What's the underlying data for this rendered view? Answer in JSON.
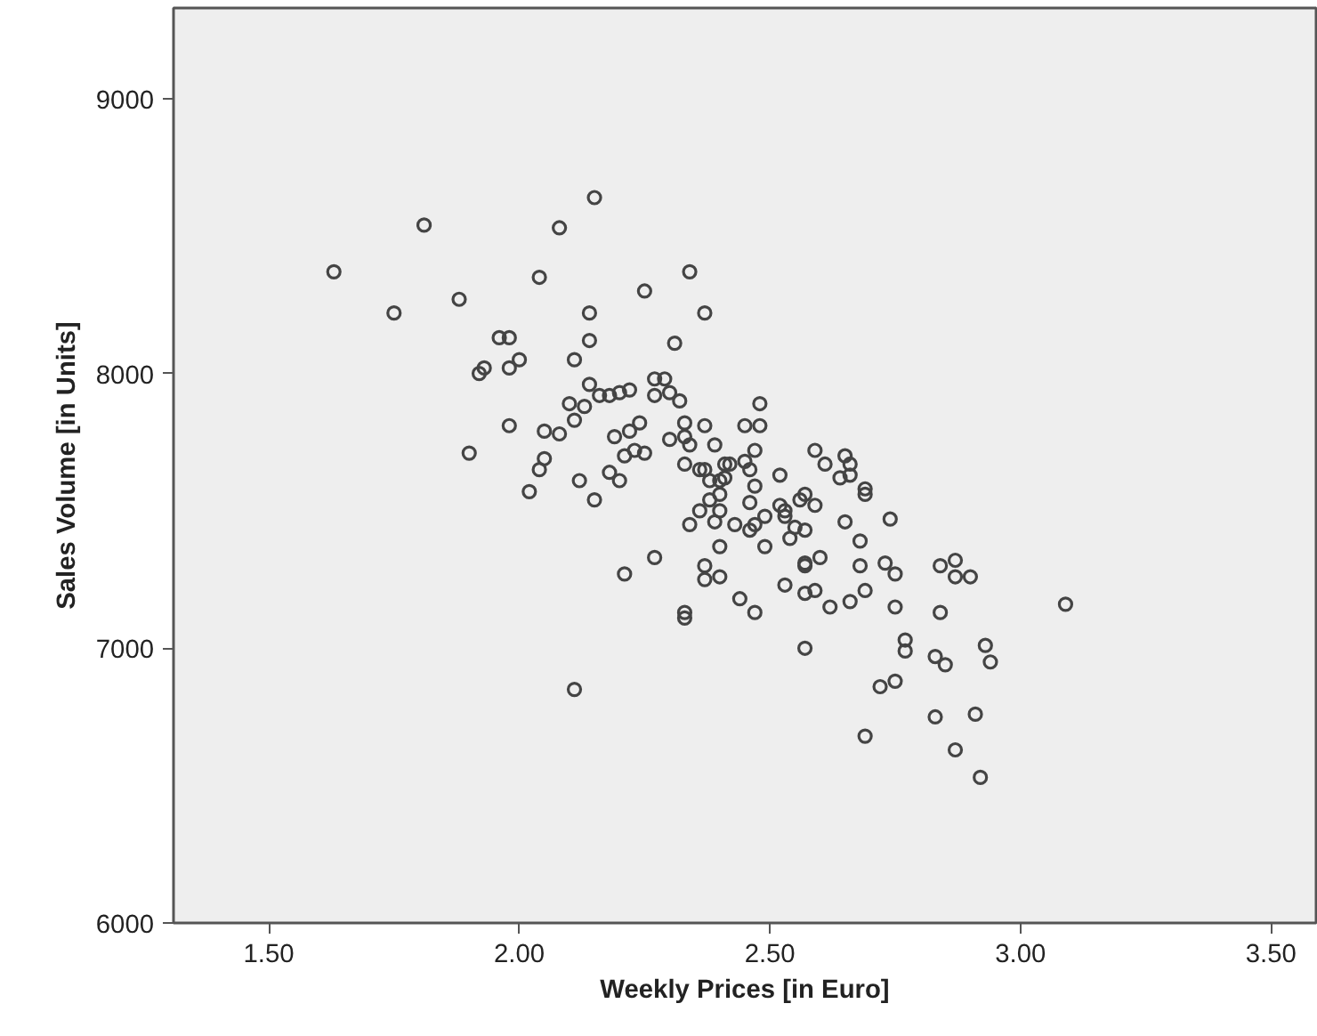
{
  "chart_data": {
    "type": "scatter",
    "xlabel": "Weekly Prices [in Euro]",
    "ylabel": "Sales Volume [in Units]",
    "xlim": [
      1.31,
      3.59
    ],
    "ylim": [
      6000,
      9330
    ],
    "xticks": [
      {
        "value": 1.5,
        "label": "1.50"
      },
      {
        "value": 2.0,
        "label": "2.00"
      },
      {
        "value": 2.5,
        "label": "2.50"
      },
      {
        "value": 3.0,
        "label": "3.00"
      },
      {
        "value": 3.5,
        "label": "3.50"
      }
    ],
    "yticks": [
      6000,
      7000,
      8000,
      9000
    ],
    "grid": false,
    "marker": "circle",
    "series": [
      {
        "color": "#444444",
        "x": [
          2.15,
          1.81,
          2.08,
          1.63,
          2.04,
          2.25,
          1.88,
          1.75,
          2.14,
          1.96,
          1.98,
          2.14,
          2.11,
          1.93,
          1.92,
          1.98,
          2.0,
          2.14,
          2.16,
          2.18,
          2.2,
          2.22,
          2.27,
          2.27,
          2.1,
          2.13,
          2.11,
          1.98,
          2.05,
          2.08,
          2.19,
          2.24,
          2.22,
          1.9,
          2.05,
          2.04,
          2.21,
          2.23,
          2.25,
          2.18,
          2.2,
          2.12,
          2.02,
          2.15,
          2.21,
          2.27,
          2.11,
          2.34,
          2.37,
          2.31,
          2.29,
          2.3,
          2.32,
          2.48,
          2.45,
          2.48,
          2.33,
          2.37,
          2.33,
          2.3,
          2.34,
          2.39,
          2.47,
          2.59,
          2.61,
          2.65,
          2.66,
          2.64,
          2.66,
          2.33,
          2.36,
          2.37,
          2.41,
          2.42,
          2.45,
          2.46,
          2.52,
          2.38,
          2.4,
          2.41,
          2.47,
          2.4,
          2.69,
          2.69,
          2.38,
          2.46,
          2.56,
          2.57,
          2.59,
          2.36,
          2.4,
          2.52,
          2.53,
          2.34,
          2.39,
          2.43,
          2.49,
          2.53,
          2.55,
          2.46,
          2.47,
          2.57,
          2.54,
          2.65,
          2.74,
          2.4,
          2.49,
          2.68,
          2.6,
          2.37,
          2.57,
          2.57,
          2.68,
          2.73,
          2.75,
          2.84,
          2.87,
          2.87,
          2.9,
          2.37,
          2.4,
          2.53,
          2.44,
          2.57,
          2.59,
          2.66,
          2.69,
          2.75,
          2.84,
          2.62,
          2.47,
          2.33,
          2.33,
          3.09,
          2.57,
          2.77,
          2.77,
          2.83,
          2.85,
          2.93,
          2.94,
          2.75,
          2.72,
          2.83,
          2.91,
          2.69,
          2.87,
          2.92
        ],
        "values": [
          8640,
          8540,
          8530,
          8370,
          8350,
          8300,
          8270,
          8220,
          8220,
          8130,
          8130,
          8120,
          8050,
          8020,
          8000,
          8020,
          8050,
          7960,
          7920,
          7920,
          7930,
          7940,
          7980,
          7920,
          7890,
          7880,
          7830,
          7810,
          7790,
          7780,
          7770,
          7820,
          7790,
          7710,
          7690,
          7650,
          7700,
          7720,
          7710,
          7640,
          7610,
          7610,
          7570,
          7540,
          7270,
          7330,
          6850,
          8370,
          8220,
          8110,
          7980,
          7930,
          7900,
          7890,
          7810,
          7810,
          7820,
          7810,
          7770,
          7760,
          7740,
          7740,
          7720,
          7720,
          7670,
          7700,
          7670,
          7620,
          7630,
          7670,
          7650,
          7650,
          7670,
          7670,
          7680,
          7650,
          7630,
          7610,
          7610,
          7620,
          7590,
          7560,
          7560,
          7580,
          7540,
          7530,
          7540,
          7560,
          7520,
          7500,
          7500,
          7520,
          7500,
          7450,
          7460,
          7450,
          7480,
          7480,
          7440,
          7430,
          7450,
          7430,
          7400,
          7460,
          7470,
          7370,
          7370,
          7390,
          7330,
          7300,
          7300,
          7310,
          7300,
          7310,
          7270,
          7300,
          7320,
          7260,
          7260,
          7250,
          7260,
          7230,
          7180,
          7200,
          7210,
          7170,
          7210,
          7150,
          7130,
          7150,
          7130,
          7130,
          7110,
          7160,
          7000,
          7030,
          6990,
          6970,
          6940,
          7010,
          6950,
          6880,
          6860,
          6750,
          6760,
          6680,
          6630,
          6530
        ]
      }
    ]
  }
}
